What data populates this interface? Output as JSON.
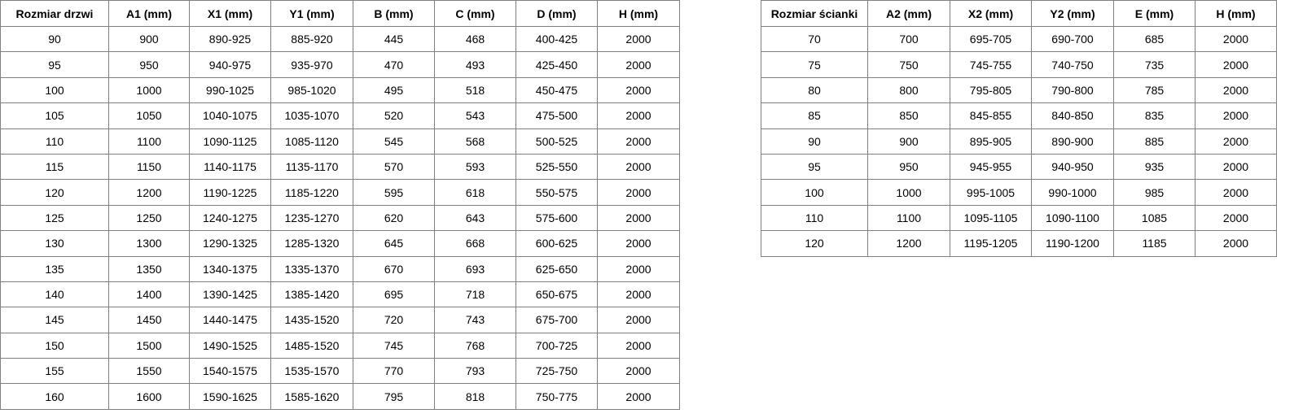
{
  "door_table": {
    "headers": [
      "Rozmiar drzwi",
      "A1 (mm)",
      "X1 (mm)",
      "Y1 (mm)",
      "B (mm)",
      "C (mm)",
      "D (mm)",
      "H (mm)"
    ],
    "rows": [
      [
        "90",
        "900",
        "890-925",
        "885-920",
        "445",
        "468",
        "400-425",
        "2000"
      ],
      [
        "95",
        "950",
        "940-975",
        "935-970",
        "470",
        "493",
        "425-450",
        "2000"
      ],
      [
        "100",
        "1000",
        "990-1025",
        "985-1020",
        "495",
        "518",
        "450-475",
        "2000"
      ],
      [
        "105",
        "1050",
        "1040-1075",
        "1035-1070",
        "520",
        "543",
        "475-500",
        "2000"
      ],
      [
        "110",
        "1100",
        "1090-1125",
        "1085-1120",
        "545",
        "568",
        "500-525",
        "2000"
      ],
      [
        "115",
        "1150",
        "1140-1175",
        "1135-1170",
        "570",
        "593",
        "525-550",
        "2000"
      ],
      [
        "120",
        "1200",
        "1190-1225",
        "1185-1220",
        "595",
        "618",
        "550-575",
        "2000"
      ],
      [
        "125",
        "1250",
        "1240-1275",
        "1235-1270",
        "620",
        "643",
        "575-600",
        "2000"
      ],
      [
        "130",
        "1300",
        "1290-1325",
        "1285-1320",
        "645",
        "668",
        "600-625",
        "2000"
      ],
      [
        "135",
        "1350",
        "1340-1375",
        "1335-1370",
        "670",
        "693",
        "625-650",
        "2000"
      ],
      [
        "140",
        "1400",
        "1390-1425",
        "1385-1420",
        "695",
        "718",
        "650-675",
        "2000"
      ],
      [
        "145",
        "1450",
        "1440-1475",
        "1435-1520",
        "720",
        "743",
        "675-700",
        "2000"
      ],
      [
        "150",
        "1500",
        "1490-1525",
        "1485-1520",
        "745",
        "768",
        "700-725",
        "2000"
      ],
      [
        "155",
        "1550",
        "1540-1575",
        "1535-1570",
        "770",
        "793",
        "725-750",
        "2000"
      ],
      [
        "160",
        "1600",
        "1590-1625",
        "1585-1620",
        "795",
        "818",
        "750-775",
        "2000"
      ]
    ]
  },
  "wall_table": {
    "headers": [
      "Rozmiar ścianki",
      "A2 (mm)",
      "X2 (mm)",
      "Y2 (mm)",
      "E (mm)",
      "H (mm)"
    ],
    "rows": [
      [
        "70",
        "700",
        "695-705",
        "690-700",
        "685",
        "2000"
      ],
      [
        "75",
        "750",
        "745-755",
        "740-750",
        "735",
        "2000"
      ],
      [
        "80",
        "800",
        "795-805",
        "790-800",
        "785",
        "2000"
      ],
      [
        "85",
        "850",
        "845-855",
        "840-850",
        "835",
        "2000"
      ],
      [
        "90",
        "900",
        "895-905",
        "890-900",
        "885",
        "2000"
      ],
      [
        "95",
        "950",
        "945-955",
        "940-950",
        "935",
        "2000"
      ],
      [
        "100",
        "1000",
        "995-1005",
        "990-1000",
        "985",
        "2000"
      ],
      [
        "110",
        "1100",
        "1095-1105",
        "1090-1100",
        "1085",
        "2000"
      ],
      [
        "120",
        "1200",
        "1195-1205",
        "1190-1200",
        "1185",
        "2000"
      ]
    ]
  }
}
